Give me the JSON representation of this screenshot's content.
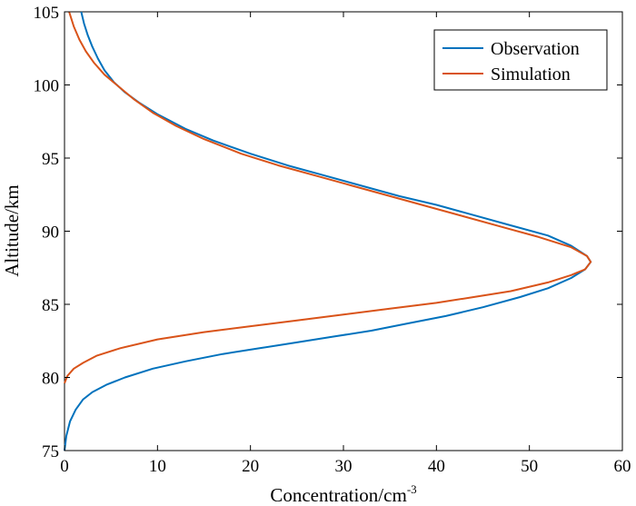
{
  "chart_data": {
    "type": "line",
    "xlabel": "Concentration/cm",
    "xlabel_superscript": "-3",
    "ylabel": "Altitude/km",
    "xlim": [
      0,
      60
    ],
    "ylim": [
      75,
      105
    ],
    "xticks": [
      "0",
      "10",
      "20",
      "30",
      "40",
      "50",
      "60"
    ],
    "yticks": [
      "75",
      "80",
      "85",
      "90",
      "95",
      "100",
      "105"
    ],
    "grid": false,
    "legend_position": "top-right",
    "series": [
      {
        "name": "Observation",
        "color": "#0072BD",
        "points": [
          [
            0.0,
            75.0
          ],
          [
            0.2,
            76.0
          ],
          [
            0.6,
            77.0
          ],
          [
            1.2,
            77.8
          ],
          [
            2.0,
            78.5
          ],
          [
            3.0,
            79.0
          ],
          [
            4.5,
            79.5
          ],
          [
            6.5,
            80.0
          ],
          [
            9.5,
            80.6
          ],
          [
            13.0,
            81.1
          ],
          [
            17.0,
            81.6
          ],
          [
            21.0,
            82.0
          ],
          [
            25.0,
            82.4
          ],
          [
            29.0,
            82.8
          ],
          [
            33.0,
            83.2
          ],
          [
            37.0,
            83.7
          ],
          [
            41.0,
            84.2
          ],
          [
            45.0,
            84.8
          ],
          [
            49.0,
            85.5
          ],
          [
            52.0,
            86.1
          ],
          [
            54.5,
            86.8
          ],
          [
            56.0,
            87.4
          ],
          [
            56.6,
            87.9
          ],
          [
            56.2,
            88.3
          ],
          [
            54.5,
            89.0
          ],
          [
            52.0,
            89.7
          ],
          [
            48.0,
            90.4
          ],
          [
            44.0,
            91.1
          ],
          [
            40.0,
            91.8
          ],
          [
            36.0,
            92.4
          ],
          [
            32.0,
            93.1
          ],
          [
            28.0,
            93.8
          ],
          [
            24.0,
            94.5
          ],
          [
            20.0,
            95.3
          ],
          [
            16.0,
            96.2
          ],
          [
            13.0,
            97.0
          ],
          [
            10.0,
            98.0
          ],
          [
            8.0,
            98.8
          ],
          [
            6.5,
            99.5
          ],
          [
            5.3,
            100.2
          ],
          [
            4.3,
            101.0
          ],
          [
            3.6,
            101.8
          ],
          [
            3.0,
            102.6
          ],
          [
            2.5,
            103.4
          ],
          [
            2.1,
            104.2
          ],
          [
            1.8,
            105.0
          ]
        ]
      },
      {
        "name": "Simulation",
        "color": "#D95319",
        "points": [
          [
            0.0,
            79.6
          ],
          [
            0.3,
            80.1
          ],
          [
            1.0,
            80.6
          ],
          [
            2.0,
            81.0
          ],
          [
            3.5,
            81.5
          ],
          [
            6.0,
            82.0
          ],
          [
            10.0,
            82.6
          ],
          [
            15.0,
            83.1
          ],
          [
            20.0,
            83.5
          ],
          [
            25.0,
            83.9
          ],
          [
            30.0,
            84.3
          ],
          [
            35.0,
            84.7
          ],
          [
            40.0,
            85.1
          ],
          [
            44.0,
            85.5
          ],
          [
            48.0,
            85.9
          ],
          [
            52.0,
            86.5
          ],
          [
            54.5,
            87.0
          ],
          [
            56.0,
            87.4
          ],
          [
            56.6,
            87.9
          ],
          [
            56.2,
            88.3
          ],
          [
            54.5,
            88.9
          ],
          [
            51.0,
            89.6
          ],
          [
            47.0,
            90.3
          ],
          [
            43.0,
            91.0
          ],
          [
            39.0,
            91.7
          ],
          [
            35.0,
            92.4
          ],
          [
            31.0,
            93.1
          ],
          [
            27.0,
            93.8
          ],
          [
            23.0,
            94.5
          ],
          [
            19.0,
            95.3
          ],
          [
            15.0,
            96.3
          ],
          [
            12.0,
            97.2
          ],
          [
            9.5,
            98.1
          ],
          [
            7.5,
            99.0
          ],
          [
            5.8,
            99.9
          ],
          [
            4.3,
            100.7
          ],
          [
            3.2,
            101.5
          ],
          [
            2.3,
            102.3
          ],
          [
            1.6,
            103.1
          ],
          [
            1.0,
            104.0
          ],
          [
            0.5,
            105.0
          ]
        ]
      }
    ]
  }
}
